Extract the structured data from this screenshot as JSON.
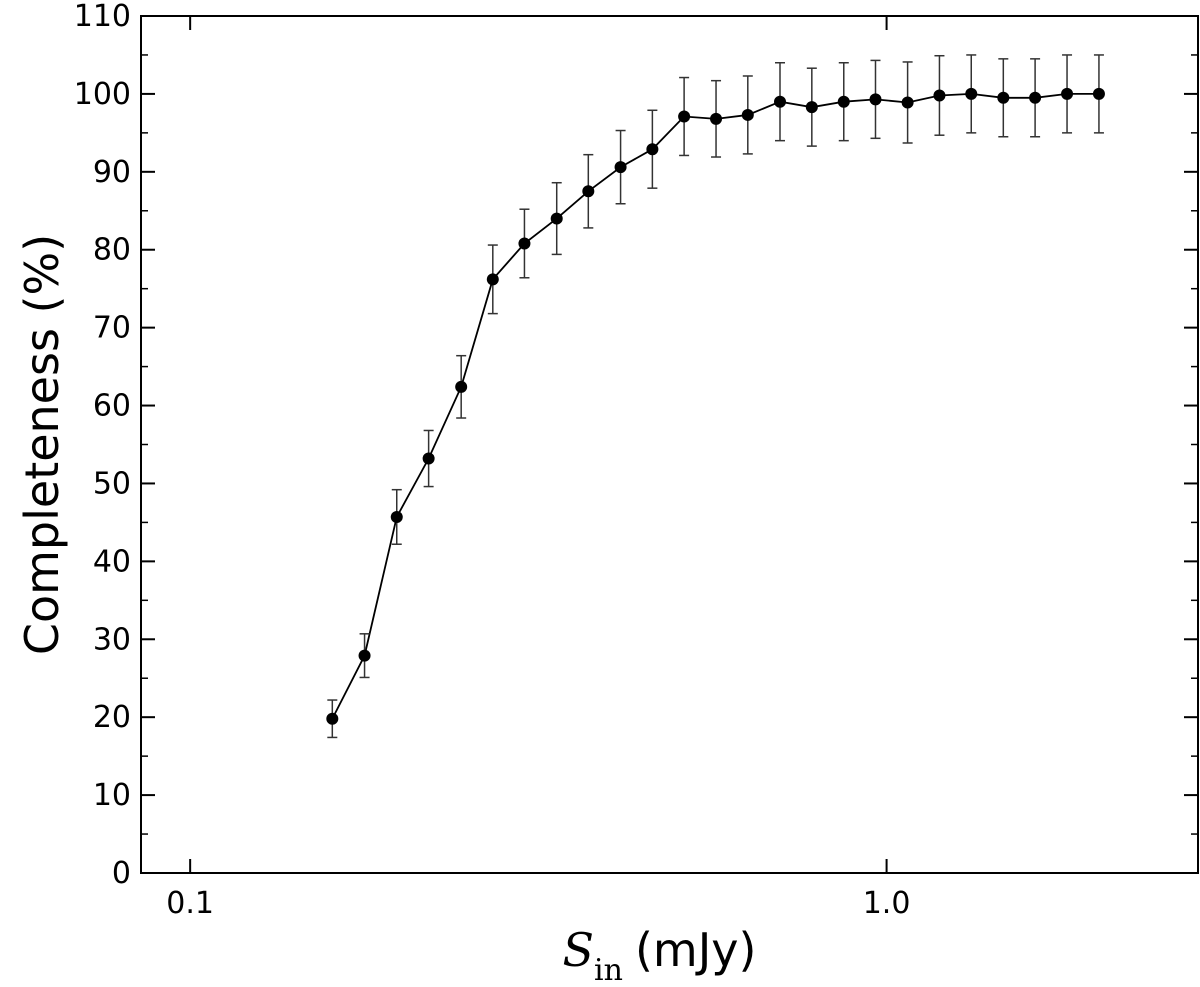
{
  "chart_data": {
    "type": "line",
    "xscale": "log",
    "xlim": [
      0.085,
      2.8
    ],
    "ylim": [
      0,
      110
    ],
    "grid": false,
    "xticks": [
      {
        "value": 0.1,
        "label": "0.1"
      },
      {
        "value": 1.0,
        "label": "1.0"
      }
    ],
    "yticks": [
      0,
      10,
      20,
      30,
      40,
      50,
      60,
      70,
      80,
      90,
      100,
      110
    ],
    "ylabel": "Completeness (%)",
    "xlabel": {
      "symbol": "S",
      "subscript": "in",
      "unit": "(mJy)"
    },
    "series": [
      {
        "color": "#000000",
        "x": [
          0.16,
          0.178,
          0.198,
          0.22,
          0.245,
          0.272,
          0.302,
          0.336,
          0.373,
          0.415,
          0.461,
          0.512,
          0.569,
          0.632,
          0.703,
          0.781,
          0.868,
          0.964,
          1.072,
          1.191,
          1.323,
          1.471,
          1.634,
          1.816,
          2.018
        ],
        "y": [
          19.8,
          27.9,
          45.7,
          53.2,
          62.4,
          76.2,
          80.8,
          84.0,
          87.5,
          90.6,
          92.9,
          97.1,
          96.8,
          97.3,
          99.0,
          98.3,
          99.0,
          99.3,
          98.9,
          99.8,
          100.0,
          99.5,
          99.5,
          100.0,
          100.0
        ],
        "yerr": [
          2.4,
          2.8,
          3.5,
          3.6,
          4.0,
          4.4,
          4.4,
          4.6,
          4.7,
          4.7,
          5.0,
          5.0,
          4.9,
          5.0,
          5.0,
          5.0,
          5.0,
          5.0,
          5.2,
          5.1,
          5.0,
          5.0,
          5.0,
          5.0,
          5.0
        ]
      }
    ]
  }
}
